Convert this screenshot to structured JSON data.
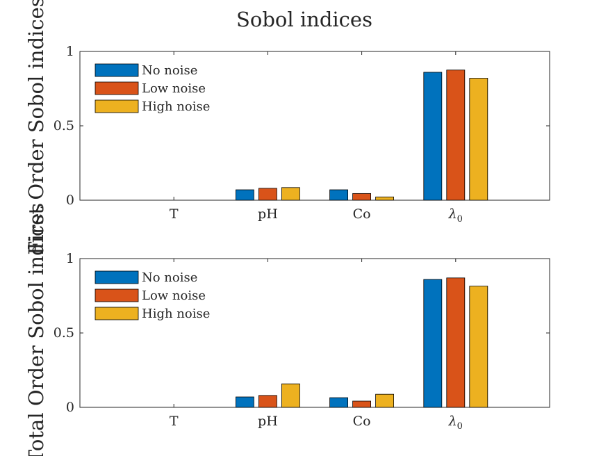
{
  "figure_title": "Sobol indices",
  "chart_data": [
    {
      "type": "bar",
      "ylabel": "First Order Sobol indices",
      "categories": [
        "T",
        "pH",
        "Co",
        "λ0"
      ],
      "ylim": [
        0,
        1
      ],
      "yticks": [
        "0",
        "0.5",
        "1"
      ],
      "legend_position": "top-left",
      "grid": false,
      "series": [
        {
          "name": "No noise",
          "color": "#0072BD",
          "values": [
            0.0,
            0.07,
            0.07,
            0.86
          ]
        },
        {
          "name": "Low noise",
          "color": "#D95319",
          "values": [
            0.0,
            0.08,
            0.045,
            0.875
          ]
        },
        {
          "name": "High noise",
          "color": "#EDB120",
          "values": [
            0.0,
            0.085,
            0.022,
            0.82
          ]
        }
      ]
    },
    {
      "type": "bar",
      "ylabel": "Total Order Sobol indices",
      "categories": [
        "T",
        "pH",
        "Co",
        "λ0"
      ],
      "ylim": [
        0,
        1
      ],
      "yticks": [
        "0",
        "0.5",
        "1"
      ],
      "legend_position": "top-left",
      "grid": false,
      "series": [
        {
          "name": "No noise",
          "color": "#0072BD",
          "values": [
            0.0,
            0.07,
            0.065,
            0.86
          ]
        },
        {
          "name": "Low noise",
          "color": "#D95319",
          "values": [
            0.0,
            0.08,
            0.042,
            0.87
          ]
        },
        {
          "name": "High noise",
          "color": "#EDB120",
          "values": [
            0.0,
            0.158,
            0.088,
            0.815
          ]
        }
      ]
    }
  ]
}
